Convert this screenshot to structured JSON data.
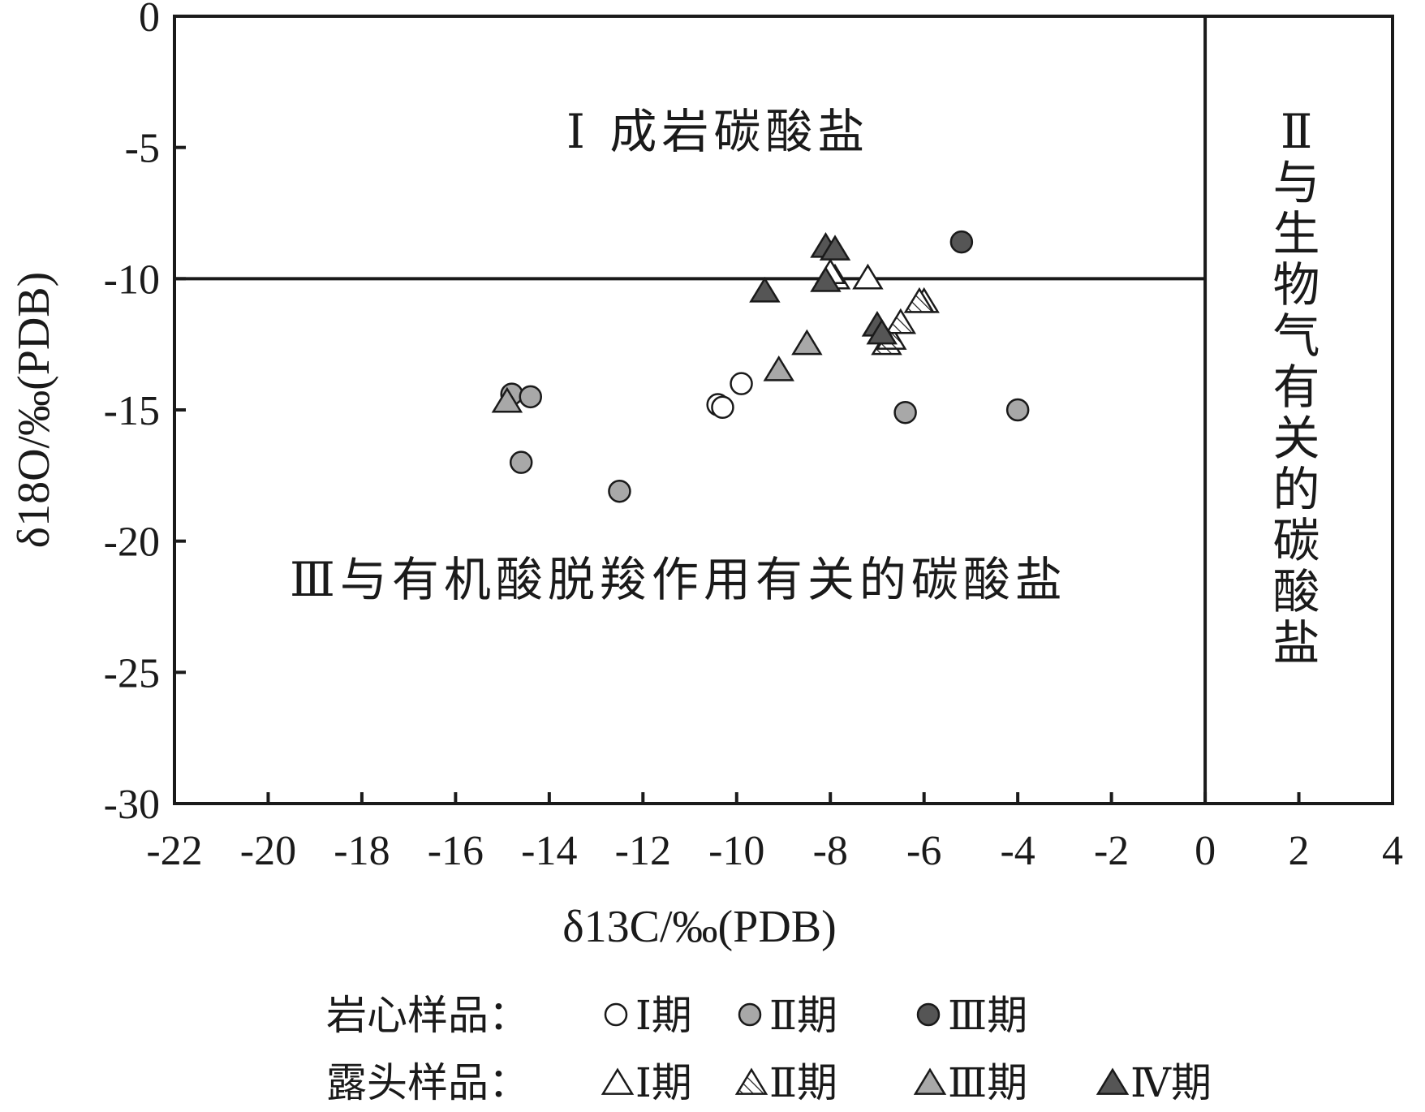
{
  "chart_data": {
    "type": "scatter",
    "xlabel": "δ13C/‰(PDB)",
    "ylabel": "δ18O/‰(PDB)",
    "xlim": [
      -22,
      4
    ],
    "ylim": [
      -30,
      0
    ],
    "x_ticks": [
      -22,
      -20,
      -18,
      -16,
      -14,
      -12,
      -10,
      -8,
      -6,
      -4,
      -2,
      0,
      2,
      4
    ],
    "y_ticks": [
      0,
      -5,
      -10,
      -15,
      -20,
      -25,
      -30
    ],
    "grid": false,
    "regions": [
      {
        "label": "Ⅰ 成岩碳酸盐",
        "boundary": "δ18O > -10, δ13C < 0"
      },
      {
        "label": "Ⅱ与生物气有关的碳酸盐",
        "boundary": "δ13C > 0",
        "orientation": "vertical"
      },
      {
        "label": "Ⅲ与有机酸脱羧作用有关的碳酸盐",
        "boundary": "δ18O < -10, δ13C < 0"
      }
    ],
    "boundary_lines": {
      "y": -10,
      "x": 0
    },
    "legend": {
      "placement": "bottom",
      "groups": [
        {
          "label": "岩心样品：",
          "items": [
            "Ⅰ期",
            "Ⅱ期",
            "Ⅲ期"
          ]
        },
        {
          "label": "露头样品：",
          "items": [
            "Ⅰ期",
            "Ⅱ期",
            "Ⅲ期",
            "Ⅳ期"
          ]
        }
      ]
    },
    "series": [
      {
        "name": "岩心样品 Ⅰ期",
        "marker": "circle",
        "fill": "#ffffff",
        "points": [
          [
            -10.4,
            -14.8
          ],
          [
            -10.3,
            -14.9
          ],
          [
            -9.9,
            -14.0
          ]
        ]
      },
      {
        "name": "岩心样品 Ⅱ期",
        "marker": "circle",
        "fill": "#a8a8a8",
        "points": [
          [
            -14.8,
            -14.4
          ],
          [
            -14.4,
            -14.5
          ],
          [
            -14.6,
            -17.0
          ],
          [
            -12.5,
            -18.1
          ],
          [
            -6.4,
            -15.1
          ],
          [
            -4.0,
            -15.0
          ]
        ]
      },
      {
        "name": "岩心样品 Ⅲ期",
        "marker": "circle",
        "fill": "#555555",
        "points": [
          [
            -5.2,
            -8.6
          ]
        ]
      },
      {
        "name": "露头样品 Ⅰ期",
        "marker": "triangle",
        "fill": "#ffffff",
        "points": [
          [
            -7.9,
            -10.0
          ],
          [
            -7.2,
            -10.0
          ],
          [
            -6.0,
            -10.9
          ],
          [
            -8.0,
            -9.8
          ]
        ]
      },
      {
        "name": "露头样品 Ⅱ期",
        "marker": "triangle",
        "fill": "hatch",
        "points": [
          [
            -6.8,
            -12.5
          ],
          [
            -6.7,
            -12.3
          ],
          [
            -6.5,
            -11.7
          ],
          [
            -6.1,
            -10.9
          ]
        ]
      },
      {
        "name": "露头样品 Ⅲ期",
        "marker": "triangle",
        "fill": "#a8a8a8",
        "points": [
          [
            -14.9,
            -14.7
          ],
          [
            -9.1,
            -13.5
          ],
          [
            -8.5,
            -12.5
          ]
        ]
      },
      {
        "name": "露头样品 Ⅳ期",
        "marker": "triangle",
        "fill": "#555555",
        "points": [
          [
            -9.4,
            -10.5
          ],
          [
            -8.1,
            -8.8
          ],
          [
            -7.9,
            -8.9
          ],
          [
            -8.1,
            -10.1
          ],
          [
            -7.0,
            -11.8
          ],
          [
            -6.9,
            -12.1
          ]
        ]
      }
    ]
  },
  "colors": {
    "axis": "#1a1a1a",
    "light_gray": "#a8a8a8",
    "dark_gray": "#555555",
    "white": "#ffffff"
  }
}
